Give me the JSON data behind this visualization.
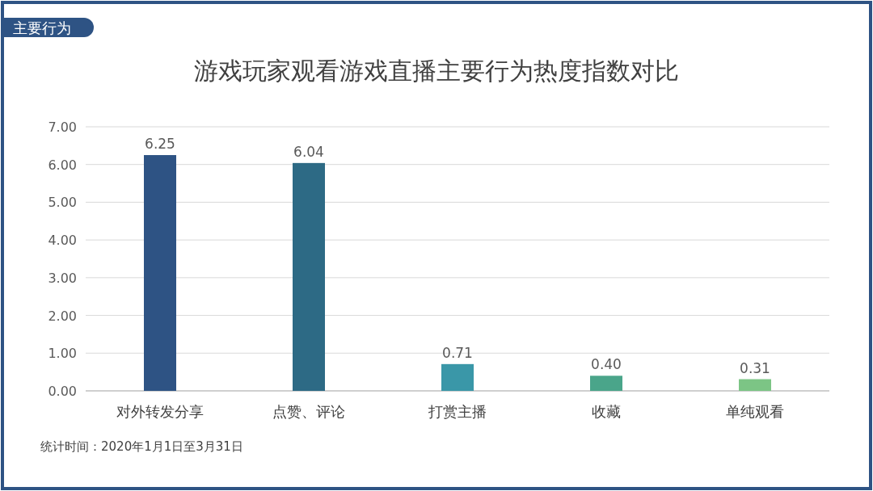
{
  "chart_data": {
    "type": "bar",
    "title": "游戏玩家观看游戏直播主要行为热度指数对比",
    "categories": [
      "对外转发分享",
      "点赞、评论",
      "打赏主播",
      "收藏",
      "单纯观看"
    ],
    "values": [
      6.25,
      6.04,
      0.71,
      0.4,
      0.31
    ],
    "colors": [
      "#2e5384",
      "#2d6a85",
      "#3a97a8",
      "#4aa58a",
      "#7cc585"
    ],
    "ylim": [
      0,
      7
    ],
    "yticks": [
      {
        "value": 0,
        "label": "0.00"
      },
      {
        "value": 1,
        "label": "1.00"
      },
      {
        "value": 2,
        "label": "2.00"
      },
      {
        "value": 3,
        "label": "3.00"
      },
      {
        "value": 4,
        "label": "4.00"
      },
      {
        "value": 5,
        "label": "5.00"
      },
      {
        "value": 6,
        "label": "6.00"
      },
      {
        "value": 7,
        "label": "7.00"
      }
    ],
    "grid": "y",
    "value_labels": [
      "6.25",
      "6.04",
      "0.71",
      "0.40",
      "0.31"
    ],
    "annotations": [
      "主要行为",
      "统计时间：2020年1月1日至3月31日"
    ]
  }
}
